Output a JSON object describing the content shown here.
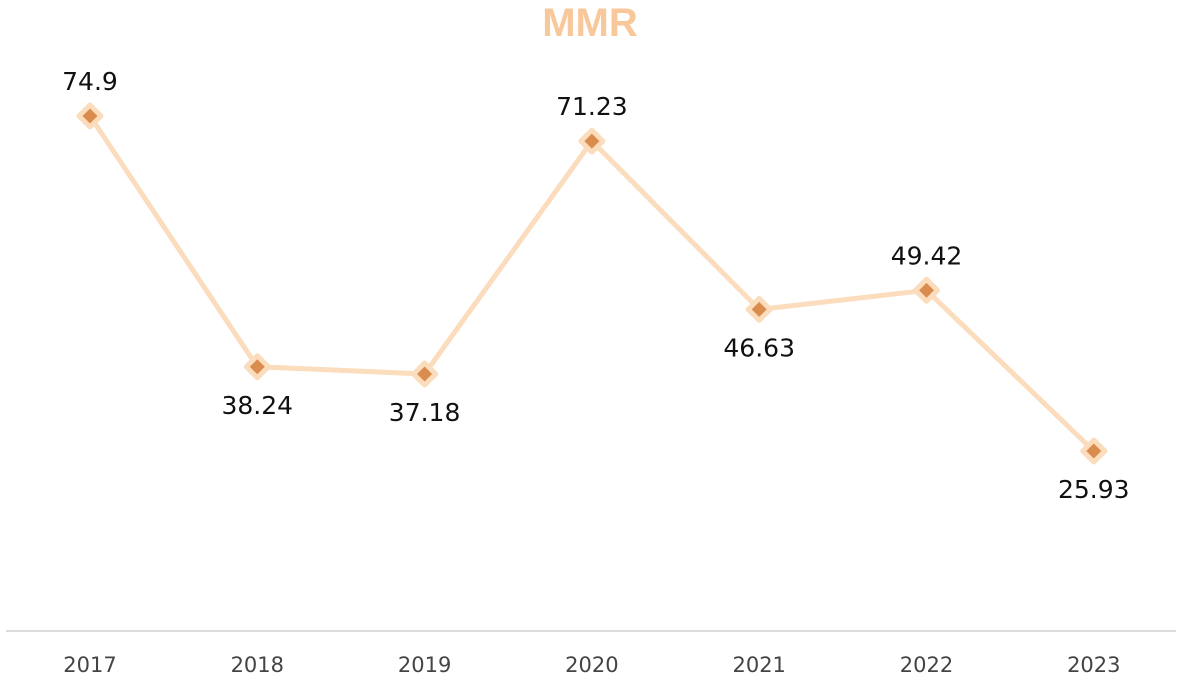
{
  "chart_data": {
    "type": "line",
    "title": "MMR",
    "xlabel": "",
    "ylabel": "",
    "categories": [
      "2017",
      "2018",
      "2019",
      "2020",
      "2021",
      "2022",
      "2023"
    ],
    "series": [
      {
        "values": [
          74.9,
          38.24,
          37.18,
          71.23,
          46.63,
          49.42,
          25.93
        ],
        "data_labels": [
          "74.9",
          "38.24",
          "37.18",
          "71.23",
          "46.63",
          "49.42",
          "25.93"
        ],
        "label_positions": [
          "above",
          "below",
          "below",
          "above",
          "below",
          "above",
          "below"
        ]
      }
    ],
    "ylim": [
      0,
      80
    ],
    "grid": false,
    "legend": "none",
    "marker": "diamond",
    "colors": {
      "title": "#f8c89a",
      "line": "#fbdcbc",
      "marker_fill": "#d98c4e",
      "marker_outline": "#fbdcbc",
      "axis": "#d0d0d0"
    }
  }
}
